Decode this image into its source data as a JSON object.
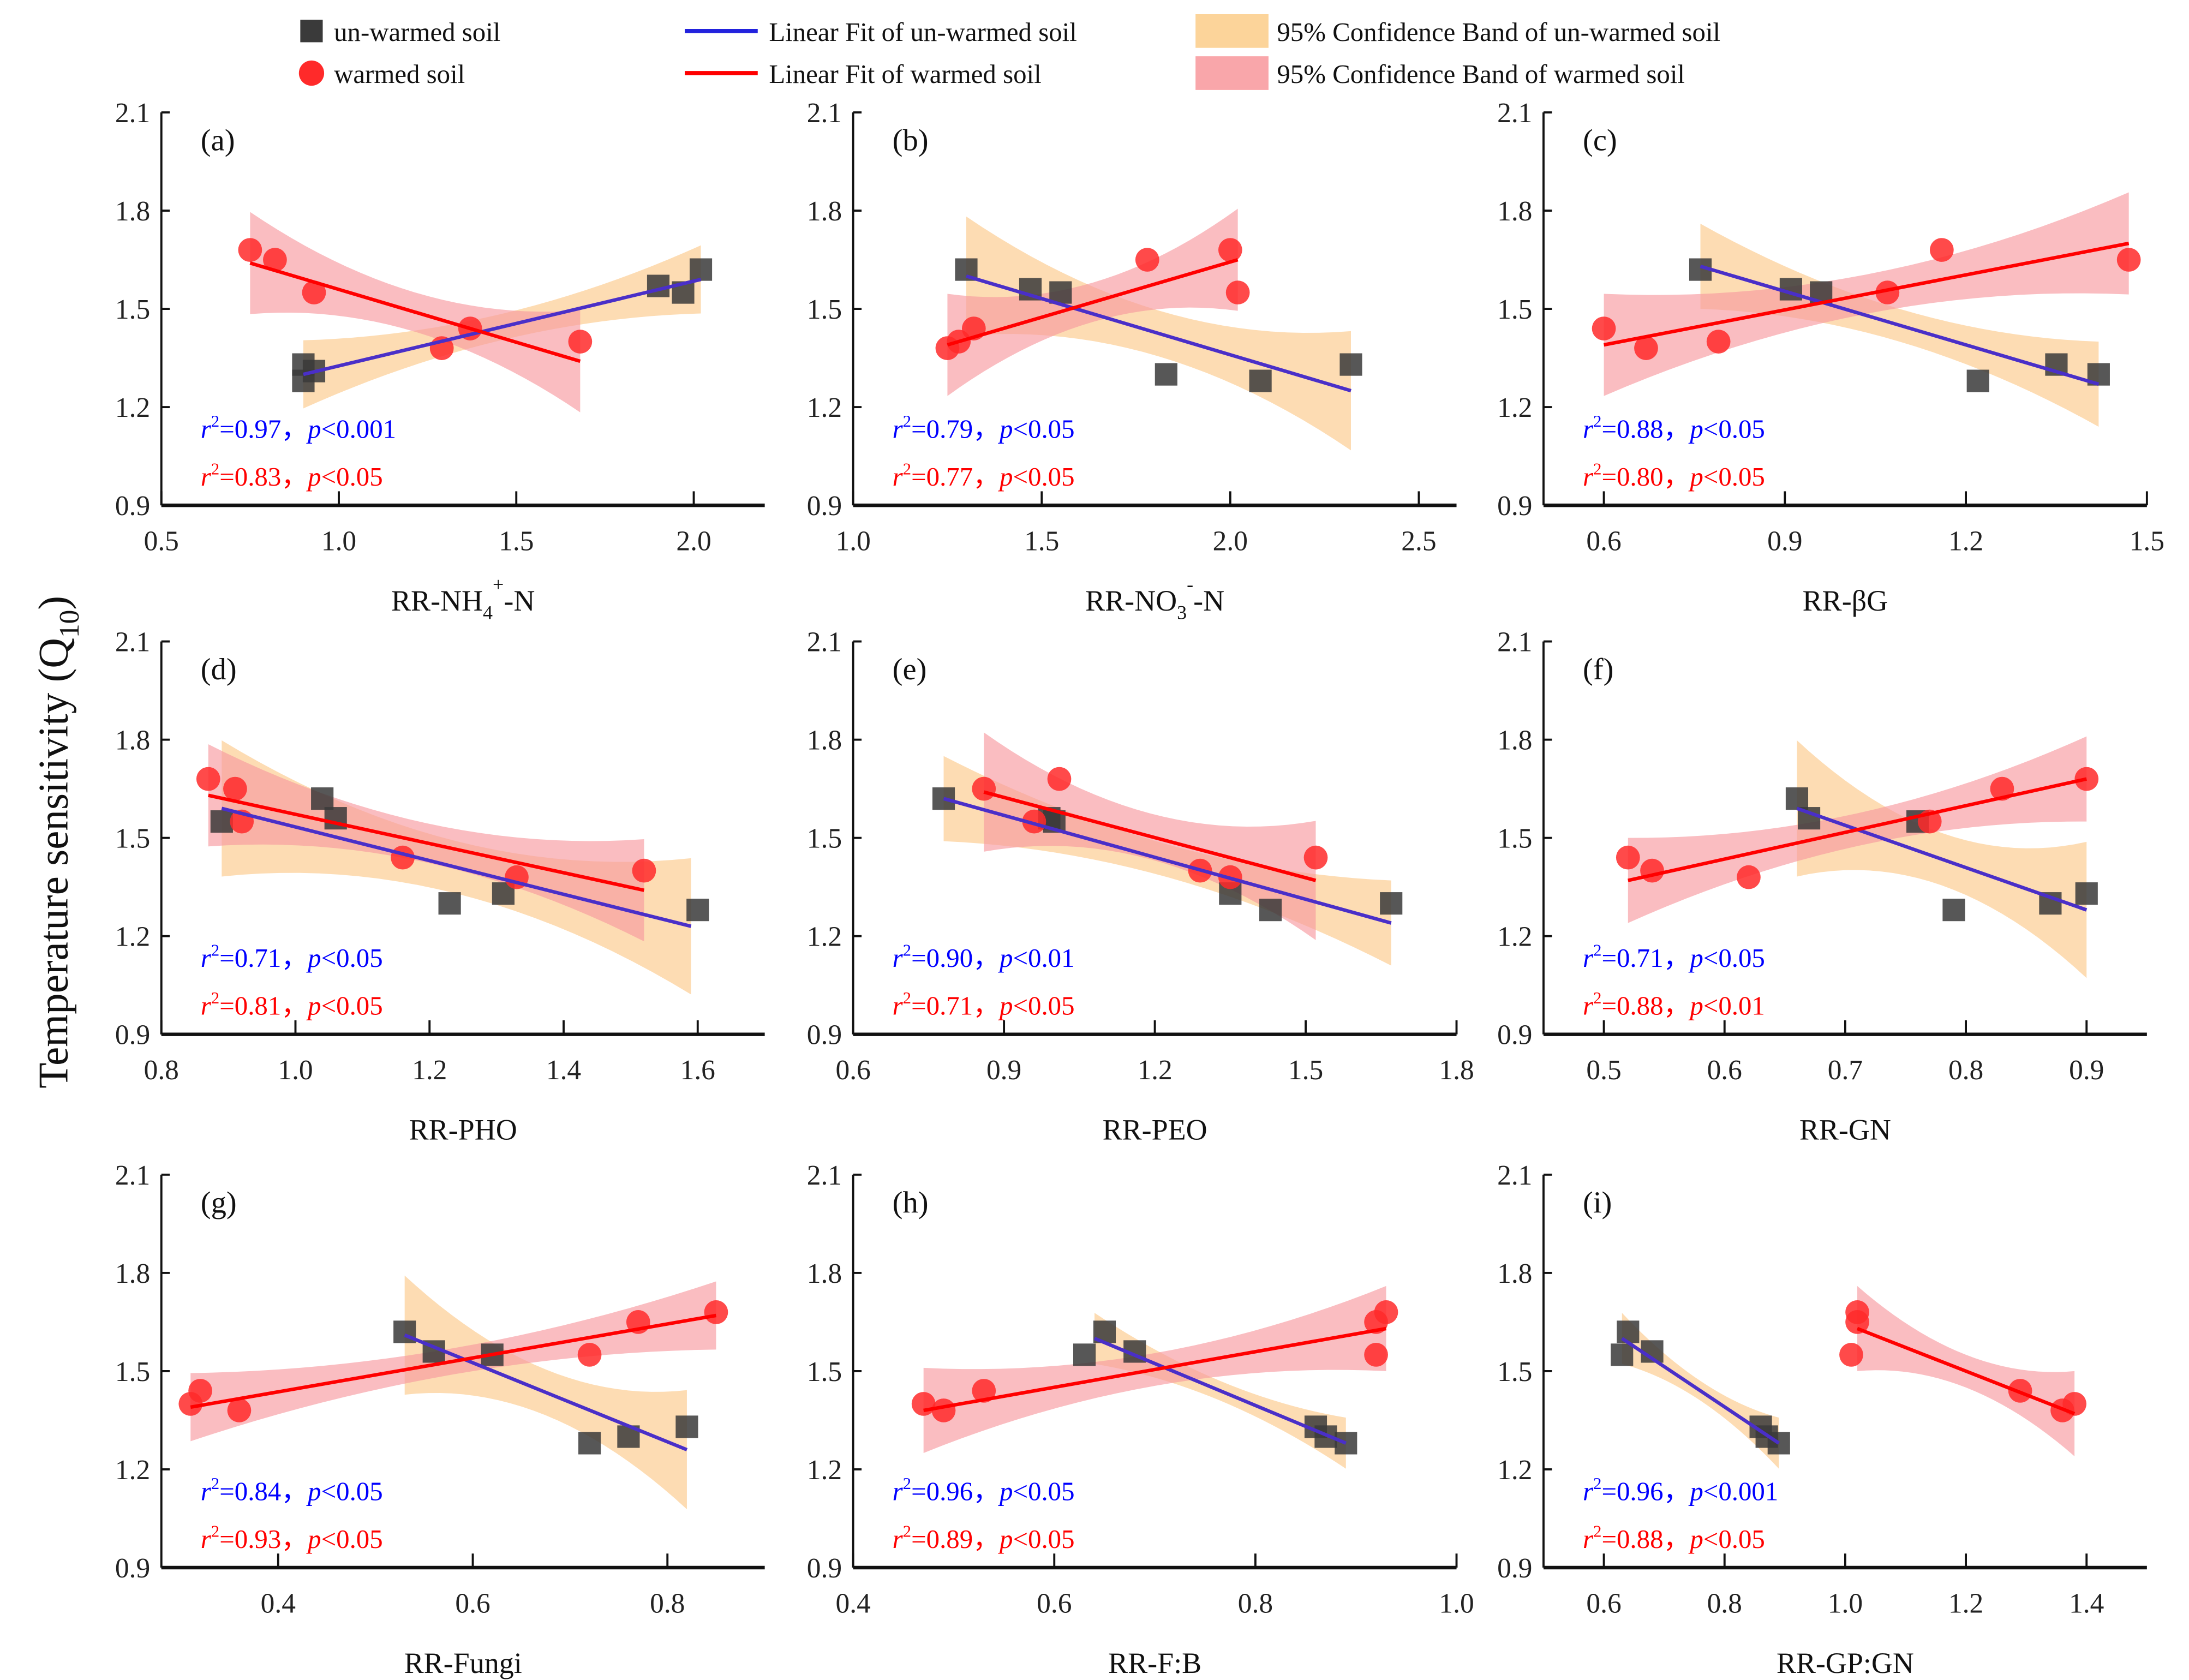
{
  "legend": [
    {
      "label": "un-warmed soil",
      "kind": "square",
      "color": "#3a3a3a"
    },
    {
      "label": "warmed soil",
      "kind": "circle",
      "color": "#ff2a2a"
    },
    {
      "label": "Linear Fit of un-warmed soil",
      "kind": "line",
      "color": "#2222dd"
    },
    {
      "label": "Linear Fit of warmed soil",
      "kind": "line",
      "color": "#ff0000"
    },
    {
      "label": "95% Confidence Band of un-warmed soil",
      "kind": "band",
      "color": "#fcd49a"
    },
    {
      "label": "95% Confidence Band of warmed soil",
      "kind": "band",
      "color": "#f9a6aa"
    }
  ],
  "ylabel": {
    "text": "Temperature sensitivity (Q",
    "sub": "10",
    "end": ")"
  },
  "colors": {
    "unwarmed_point": "#3a3a3a",
    "warmed_point": "#ff2a2a",
    "unwarmed_fit": "#4a2fc8",
    "warmed_fit": "#ff0000",
    "unwarmed_band": "#fcc98a",
    "warmed_band": "#f89aa0",
    "stat_blue": "#0000ff",
    "stat_red": "#ff0000"
  },
  "chart_data": [
    {
      "type": "scatter",
      "panel": "(a)",
      "xlabel": [
        {
          "t": "RR-NH"
        },
        {
          "t": "4",
          "sub": true
        },
        {
          "t": "+",
          "sup": true
        },
        {
          "t": "-N"
        }
      ],
      "xlim": [
        0.5,
        2.2
      ],
      "xticks": [
        "0.5",
        "1.0",
        "1.5",
        "2.0"
      ],
      "ylim": [
        0.9,
        2.1
      ],
      "yticks": [
        "0.9",
        "1.2",
        "1.5",
        "1.8",
        "2.1"
      ],
      "unwarmed": {
        "x": [
          0.9,
          0.9,
          0.93,
          1.9,
          1.97,
          2.02
        ],
        "y": [
          1.33,
          1.28,
          1.31,
          1.57,
          1.55,
          1.62
        ],
        "fit": [
          [
            0.9,
            1.3
          ],
          [
            2.02,
            1.59
          ]
        ],
        "band": 0.04,
        "r2": "0.97",
        "p": "<0.001"
      },
      "warmed": {
        "x": [
          0.75,
          0.82,
          0.93,
          1.29,
          1.37,
          1.68
        ],
        "y": [
          1.68,
          1.65,
          1.55,
          1.38,
          1.44,
          1.4
        ],
        "fit": [
          [
            0.75,
            1.64
          ],
          [
            1.68,
            1.34
          ]
        ],
        "band": 0.06,
        "r2": "0.83",
        "p": "<0.05"
      }
    },
    {
      "type": "scatter",
      "panel": "(b)",
      "xlabel": [
        {
          "t": "RR-NO"
        },
        {
          "t": "3",
          "sub": true
        },
        {
          "t": "-",
          "sup": true
        },
        {
          "t": "-N"
        }
      ],
      "xlim": [
        1.0,
        2.6
      ],
      "xticks": [
        "1.0",
        "1.5",
        "2.0",
        "2.5"
      ],
      "ylim": [
        0.9,
        2.1
      ],
      "yticks": [
        "0.9",
        "1.2",
        "1.5",
        "1.8",
        "2.1"
      ],
      "unwarmed": {
        "x": [
          1.3,
          1.47,
          1.55,
          1.83,
          2.08,
          2.32
        ],
        "y": [
          1.62,
          1.56,
          1.55,
          1.3,
          1.28,
          1.33
        ],
        "fit": [
          [
            1.3,
            1.6
          ],
          [
            2.32,
            1.25
          ]
        ],
        "band": 0.07,
        "r2": "0.79",
        "p": "<0.05"
      },
      "warmed": {
        "x": [
          1.25,
          1.28,
          1.32,
          1.78,
          2.0,
          2.02
        ],
        "y": [
          1.38,
          1.4,
          1.44,
          1.65,
          1.68,
          1.55
        ],
        "fit": [
          [
            1.25,
            1.39
          ],
          [
            2.02,
            1.65
          ]
        ],
        "band": 0.06,
        "r2": "0.77",
        "p": "<0.05"
      }
    },
    {
      "type": "scatter",
      "panel": "(c)",
      "xlabel": [
        {
          "t": "RR-βG"
        }
      ],
      "xlim": [
        0.5,
        1.5
      ],
      "xticks": [
        "0.6",
        "0.9",
        "1.2",
        "1.5"
      ],
      "ylim": [
        0.9,
        2.1
      ],
      "yticks": [
        "0.9",
        "1.2",
        "1.5",
        "1.8",
        "2.1"
      ],
      "unwarmed": {
        "x": [
          0.76,
          0.91,
          0.96,
          1.22,
          1.35,
          1.42
        ],
        "y": [
          1.62,
          1.56,
          1.55,
          1.28,
          1.33,
          1.3
        ],
        "fit": [
          [
            0.76,
            1.63
          ],
          [
            1.42,
            1.27
          ]
        ],
        "band": 0.05,
        "r2": "0.88",
        "p": "<0.05"
      },
      "warmed": {
        "x": [
          0.6,
          0.67,
          0.79,
          1.07,
          1.16,
          1.47
        ],
        "y": [
          1.44,
          1.38,
          1.4,
          1.55,
          1.68,
          1.65
        ],
        "fit": [
          [
            0.6,
            1.39
          ],
          [
            1.47,
            1.7
          ]
        ],
        "band": 0.06,
        "r2": "0.80",
        "p": "<0.05"
      }
    },
    {
      "type": "scatter",
      "panel": "(d)",
      "xlabel": [
        {
          "t": "RR-PHO"
        }
      ],
      "xlim": [
        0.8,
        1.7
      ],
      "xticks": [
        "0.8",
        "1.0",
        "1.2",
        "1.4",
        "1.6"
      ],
      "ylim": [
        0.9,
        2.1
      ],
      "yticks": [
        "0.9",
        "1.2",
        "1.5",
        "1.8",
        "2.1"
      ],
      "unwarmed": {
        "x": [
          0.89,
          1.04,
          1.06,
          1.23,
          1.31,
          1.6
        ],
        "y": [
          1.55,
          1.62,
          1.56,
          1.3,
          1.33,
          1.28
        ],
        "fit": [
          [
            0.89,
            1.59
          ],
          [
            1.59,
            1.23
          ]
        ],
        "band": 0.08,
        "r2": "0.71",
        "p": "<0.05"
      },
      "warmed": {
        "x": [
          0.87,
          0.91,
          0.92,
          1.16,
          1.33,
          1.52
        ],
        "y": [
          1.68,
          1.65,
          1.55,
          1.44,
          1.38,
          1.4
        ],
        "fit": [
          [
            0.87,
            1.63
          ],
          [
            1.52,
            1.34
          ]
        ],
        "band": 0.06,
        "r2": "0.81",
        "p": "<0.05"
      }
    },
    {
      "type": "scatter",
      "panel": "(e)",
      "xlabel": [
        {
          "t": "RR-PEO"
        }
      ],
      "xlim": [
        0.6,
        1.8
      ],
      "xticks": [
        "0.6",
        "0.9",
        "1.2",
        "1.5",
        "1.8"
      ],
      "ylim": [
        0.9,
        2.1
      ],
      "yticks": [
        "0.9",
        "1.2",
        "1.5",
        "1.8",
        "2.1"
      ],
      "unwarmed": {
        "x": [
          0.78,
          0.99,
          1.0,
          1.35,
          1.43,
          1.67
        ],
        "y": [
          1.62,
          1.56,
          1.55,
          1.33,
          1.28,
          1.3
        ],
        "fit": [
          [
            0.78,
            1.62
          ],
          [
            1.67,
            1.24
          ]
        ],
        "band": 0.05,
        "r2": "0.90",
        "p": "<0.01"
      },
      "warmed": {
        "x": [
          0.86,
          0.96,
          1.01,
          1.29,
          1.35,
          1.52
        ],
        "y": [
          1.65,
          1.55,
          1.68,
          1.4,
          1.38,
          1.44
        ],
        "fit": [
          [
            0.86,
            1.64
          ],
          [
            1.52,
            1.37
          ]
        ],
        "band": 0.07,
        "r2": "0.71",
        "p": "<0.05"
      }
    },
    {
      "type": "scatter",
      "panel": "(f)",
      "xlabel": [
        {
          "t": "RR-GN"
        }
      ],
      "xlim": [
        0.45,
        0.95
      ],
      "xticks": [
        "0.5",
        "0.6",
        "0.7",
        "0.8",
        "0.9"
      ],
      "ylim": [
        0.9,
        2.1
      ],
      "yticks": [
        "0.9",
        "1.2",
        "1.5",
        "1.8",
        "2.1"
      ],
      "unwarmed": {
        "x": [
          0.66,
          0.67,
          0.76,
          0.79,
          0.87,
          0.9
        ],
        "y": [
          1.62,
          1.56,
          1.55,
          1.28,
          1.3,
          1.33
        ],
        "fit": [
          [
            0.66,
            1.59
          ],
          [
            0.9,
            1.28
          ]
        ],
        "band": 0.08,
        "r2": "0.71",
        "p": "<0.05"
      },
      "warmed": {
        "x": [
          0.52,
          0.54,
          0.62,
          0.77,
          0.83,
          0.9
        ],
        "y": [
          1.44,
          1.4,
          1.38,
          1.55,
          1.65,
          1.68
        ],
        "fit": [
          [
            0.52,
            1.37
          ],
          [
            0.9,
            1.68
          ]
        ],
        "band": 0.05,
        "r2": "0.88",
        "p": "<0.01"
      }
    },
    {
      "type": "scatter",
      "panel": "(g)",
      "xlabel": [
        {
          "t": "RR-Fungi"
        }
      ],
      "xlim": [
        0.28,
        0.9
      ],
      "xticks": [
        "0.4",
        "0.6",
        "0.8"
      ],
      "ylim": [
        0.9,
        2.1
      ],
      "yticks": [
        "0.9",
        "1.2",
        "1.5",
        "1.8",
        "2.1"
      ],
      "unwarmed": {
        "x": [
          0.53,
          0.56,
          0.62,
          0.72,
          0.76,
          0.82
        ],
        "y": [
          1.62,
          1.56,
          1.55,
          1.28,
          1.3,
          1.33
        ],
        "fit": [
          [
            0.53,
            1.61
          ],
          [
            0.82,
            1.26
          ]
        ],
        "band": 0.07,
        "r2": "0.84",
        "p": "<0.05"
      },
      "warmed": {
        "x": [
          0.31,
          0.32,
          0.36,
          0.72,
          0.77,
          0.85
        ],
        "y": [
          1.4,
          1.44,
          1.38,
          1.55,
          1.65,
          1.68
        ],
        "fit": [
          [
            0.31,
            1.39
          ],
          [
            0.85,
            1.67
          ]
        ],
        "band": 0.04,
        "r2": "0.93",
        "p": "<0.05"
      }
    },
    {
      "type": "scatter",
      "panel": "(h)",
      "xlabel": [
        {
          "t": "RR-F:B"
        }
      ],
      "xlim": [
        0.4,
        1.0
      ],
      "xticks": [
        "0.4",
        "0.6",
        "0.8",
        "1.0"
      ],
      "ylim": [
        0.9,
        2.1
      ],
      "yticks": [
        "0.9",
        "1.2",
        "1.5",
        "1.8",
        "2.1"
      ],
      "unwarmed": {
        "x": [
          0.63,
          0.65,
          0.68,
          0.86,
          0.87,
          0.89
        ],
        "y": [
          1.55,
          1.62,
          1.56,
          1.33,
          1.3,
          1.28
        ],
        "fit": [
          [
            0.64,
            1.6
          ],
          [
            0.89,
            1.28
          ]
        ],
        "band": 0.03,
        "r2": "0.96",
        "p": "<0.05"
      },
      "warmed": {
        "x": [
          0.47,
          0.49,
          0.53,
          0.92,
          0.92,
          0.93
        ],
        "y": [
          1.4,
          1.38,
          1.44,
          1.55,
          1.65,
          1.68
        ],
        "fit": [
          [
            0.47,
            1.38
          ],
          [
            0.93,
            1.63
          ]
        ],
        "band": 0.05,
        "r2": "0.89",
        "p": "<0.05"
      }
    },
    {
      "type": "scatter",
      "panel": "(i)",
      "xlabel": [
        {
          "t": "RR-GP:GN"
        }
      ],
      "xlim": [
        0.5,
        1.5
      ],
      "xticks": [
        "0.6",
        "0.8",
        "1.0",
        "1.2",
        "1.4"
      ],
      "ylim": [
        0.9,
        2.1
      ],
      "yticks": [
        "0.9",
        "1.2",
        "1.5",
        "1.8",
        "2.1"
      ],
      "unwarmed": {
        "x": [
          0.63,
          0.64,
          0.68,
          0.86,
          0.87,
          0.89
        ],
        "y": [
          1.55,
          1.62,
          1.56,
          1.33,
          1.3,
          1.28
        ],
        "fit": [
          [
            0.63,
            1.6
          ],
          [
            0.89,
            1.28
          ]
        ],
        "band": 0.03,
        "r2": "0.96",
        "p": "<0.001"
      },
      "warmed": {
        "x": [
          1.01,
          1.02,
          1.02,
          1.29,
          1.36,
          1.38
        ],
        "y": [
          1.55,
          1.68,
          1.65,
          1.44,
          1.38,
          1.4
        ],
        "fit": [
          [
            1.02,
            1.63
          ],
          [
            1.38,
            1.37
          ]
        ],
        "band": 0.05,
        "r2": "0.88",
        "p": "<0.05"
      }
    }
  ]
}
